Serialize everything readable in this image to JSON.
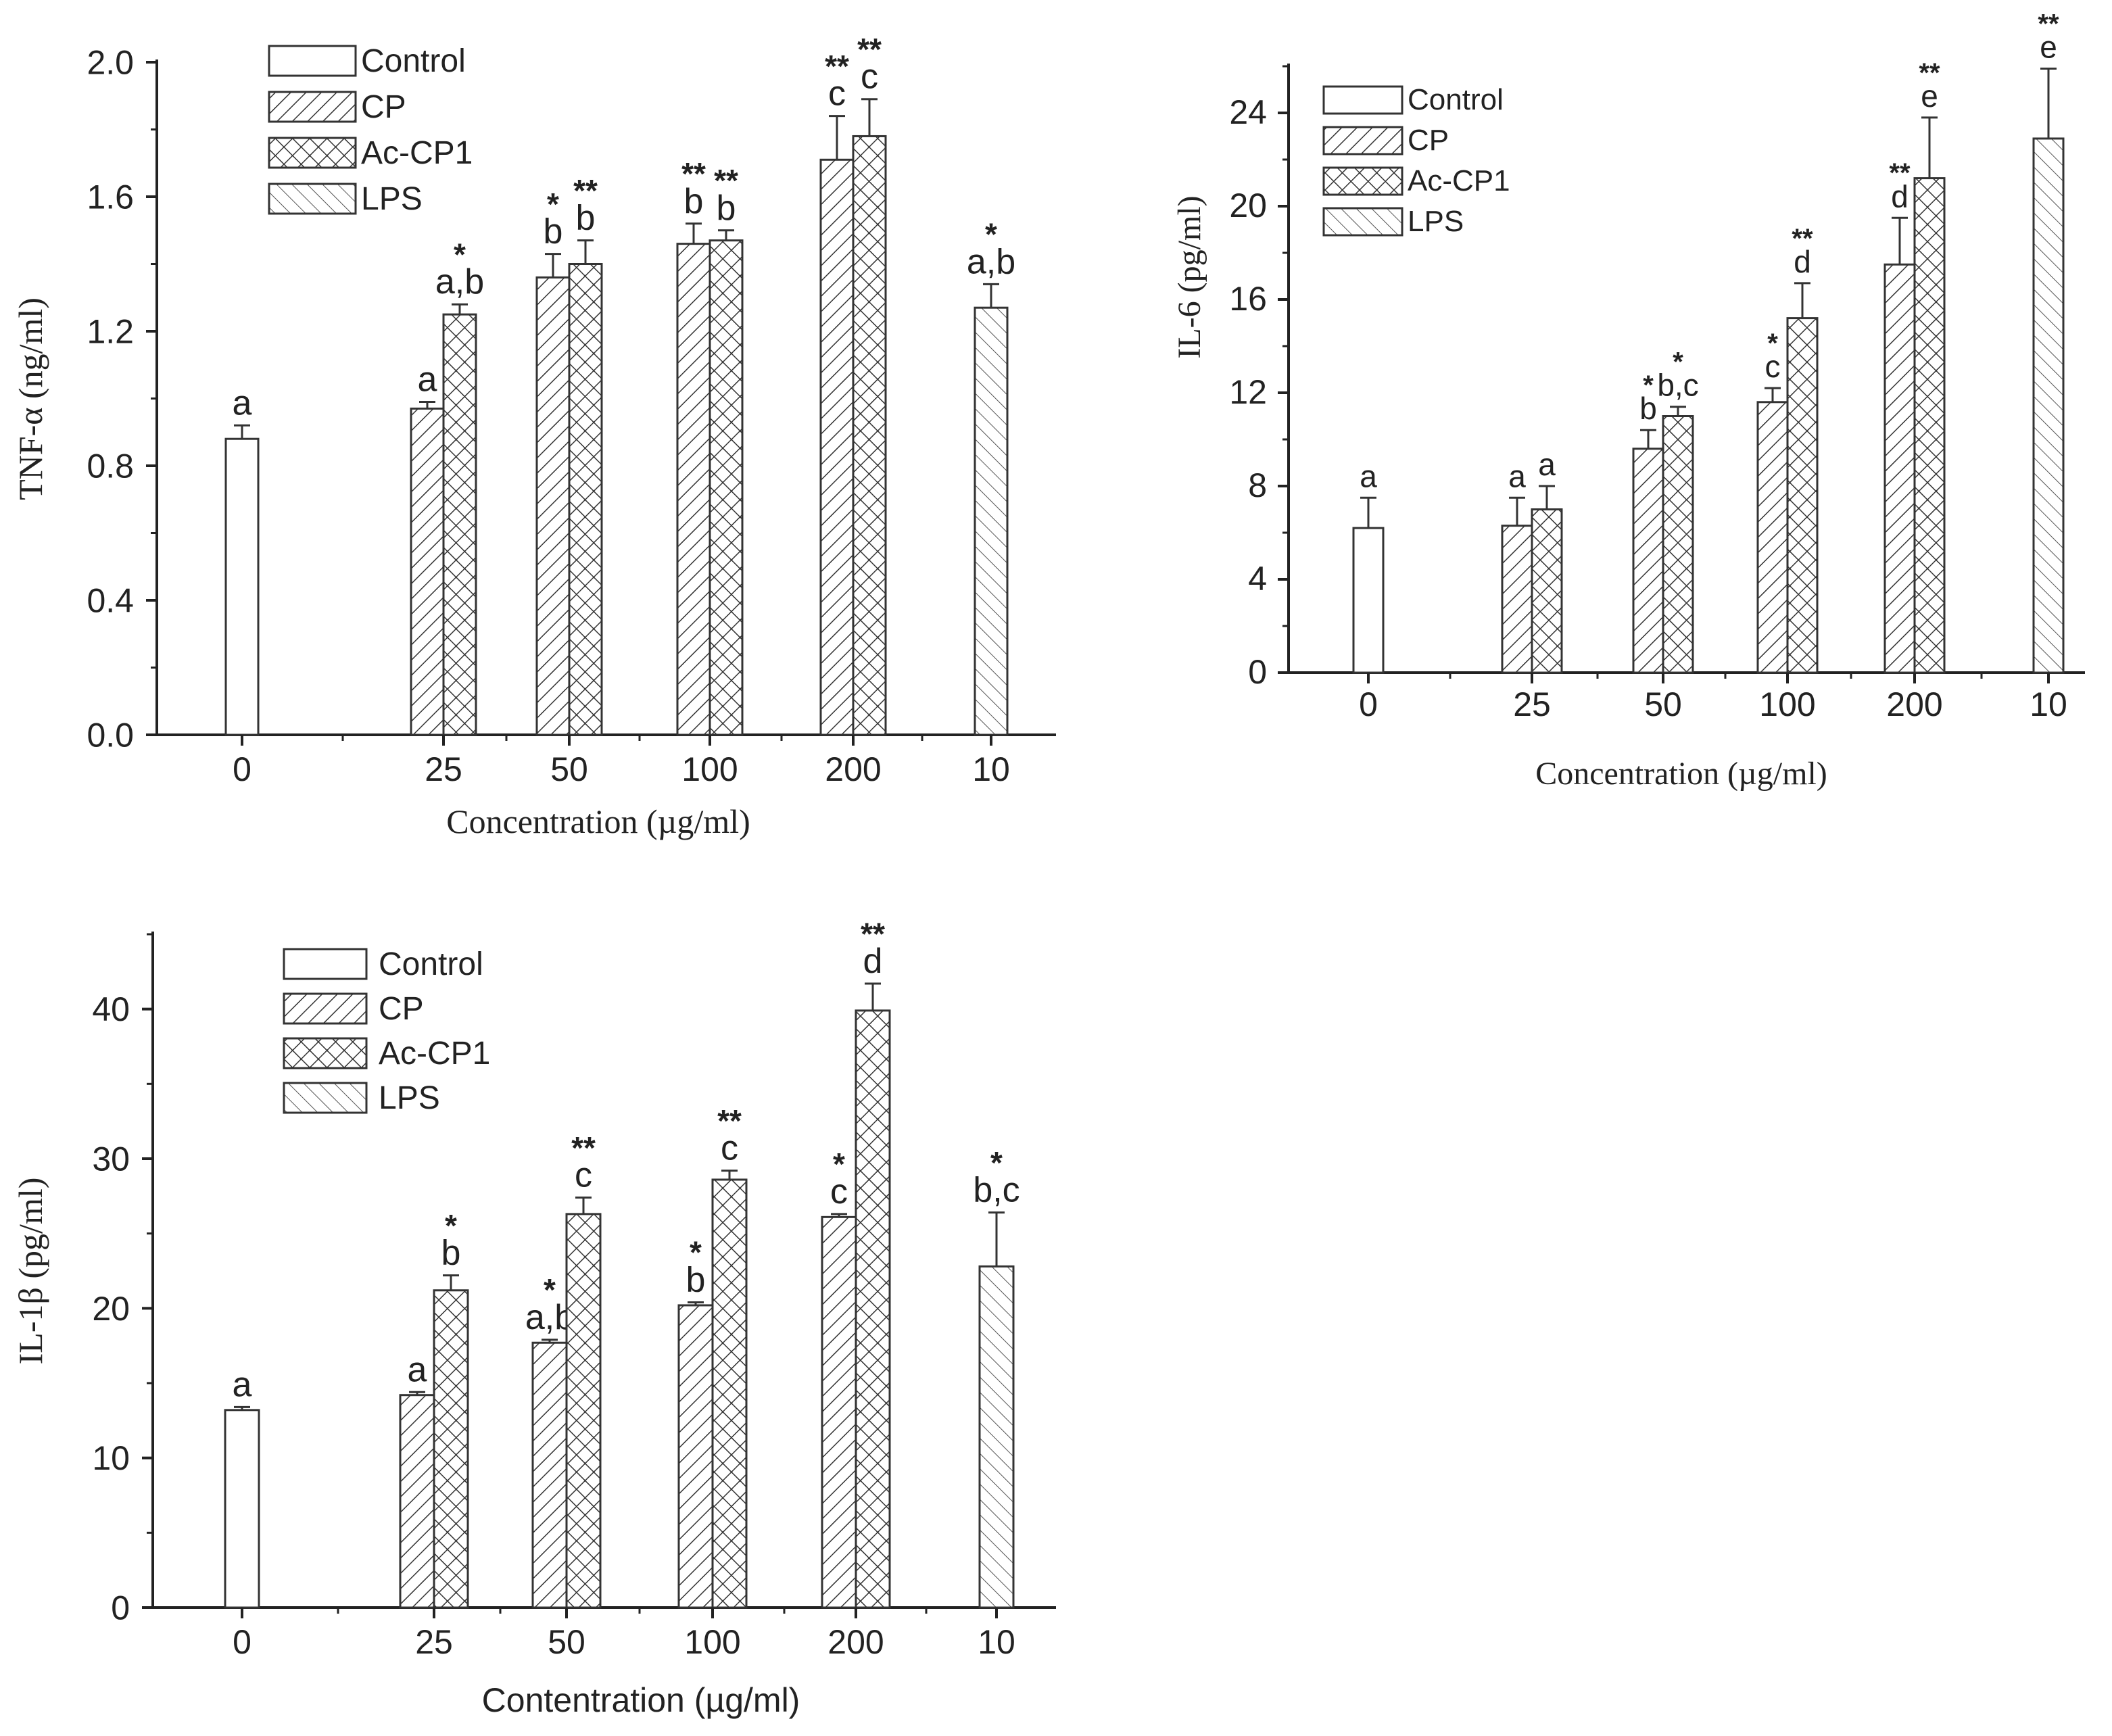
{
  "chart_data": [
    {
      "type": "bar",
      "panel": "top-left",
      "ylabel": "TNF-α  (ng/ml)",
      "xlabel": "Concentration (µg/ml)",
      "ylim": [
        0,
        2.0
      ],
      "yticks": [
        "0.0",
        "0.4",
        "0.8",
        "1.2",
        "1.6",
        "2.0"
      ],
      "ytick_values": [
        0,
        0.4,
        0.8,
        1.2,
        1.6,
        2.0
      ],
      "categories": [
        "0",
        "25",
        "50",
        "100",
        "200",
        "10"
      ],
      "legend": [
        "Control",
        "CP",
        "Ac-CP1"
      ],
      "legend_last": "LPS",
      "legend_position": "top-left",
      "bars": [
        {
          "series": "Control",
          "category": "0",
          "value": 0.88,
          "error": 0.04,
          "letters": "a",
          "stars": ""
        },
        {
          "series": "CP",
          "category": "25",
          "value": 0.97,
          "error": 0.02,
          "letters": "a",
          "stars": ""
        },
        {
          "series": "Ac-CP1",
          "category": "25",
          "value": 1.25,
          "error": 0.03,
          "letters": "a,b",
          "stars": "*"
        },
        {
          "series": "CP",
          "category": "50",
          "value": 1.36,
          "error": 0.07,
          "letters": "b",
          "stars": "*"
        },
        {
          "series": "Ac-CP1",
          "category": "50",
          "value": 1.4,
          "error": 0.07,
          "letters": "b",
          "stars": "**"
        },
        {
          "series": "CP",
          "category": "100",
          "value": 1.46,
          "error": 0.06,
          "letters": "b",
          "stars": "**"
        },
        {
          "series": "Ac-CP1",
          "category": "100",
          "value": 1.47,
          "error": 0.03,
          "letters": "b",
          "stars": "**"
        },
        {
          "series": "CP",
          "category": "200",
          "value": 1.71,
          "error": 0.13,
          "letters": "c",
          "stars": "**"
        },
        {
          "series": "Ac-CP1",
          "category": "200",
          "value": 1.78,
          "error": 0.11,
          "letters": "c",
          "stars": "**"
        },
        {
          "series": "LPS",
          "category": "10",
          "value": 1.27,
          "error": 0.07,
          "letters": "a,b",
          "stars": "*"
        }
      ]
    },
    {
      "type": "bar",
      "panel": "top-right",
      "ylabel": "IL-6 (pg/ml)",
      "xlabel": "Concentration (µg/ml)",
      "ylim": [
        0,
        26
      ],
      "yticks": [
        "0",
        "4",
        "8",
        "12",
        "16",
        "20",
        "24"
      ],
      "ytick_values": [
        0,
        4,
        8,
        12,
        16,
        20,
        24
      ],
      "categories": [
        "0",
        "25",
        "50",
        "100",
        "200",
        "10"
      ],
      "legend": [
        "Control",
        "CP",
        "Ac-CP1"
      ],
      "legend_last": "LPS",
      "legend_position": "top-left",
      "bars": [
        {
          "series": "Control",
          "category": "0",
          "value": 6.2,
          "error": 1.3,
          "letters": "a",
          "stars": ""
        },
        {
          "series": "CP",
          "category": "25",
          "value": 6.3,
          "error": 1.2,
          "letters": "a",
          "stars": ""
        },
        {
          "series": "Ac-CP1",
          "category": "25",
          "value": 7.0,
          "error": 1.0,
          "letters": "a",
          "stars": ""
        },
        {
          "series": "CP",
          "category": "50",
          "value": 9.6,
          "error": 0.8,
          "letters": "b",
          "stars": "*"
        },
        {
          "series": "Ac-CP1",
          "category": "50",
          "value": 11.0,
          "error": 0.4,
          "letters": "b,c",
          "stars": "*"
        },
        {
          "series": "CP",
          "category": "100",
          "value": 11.6,
          "error": 0.6,
          "letters": "c",
          "stars": "*"
        },
        {
          "series": "Ac-CP1",
          "category": "100",
          "value": 15.2,
          "error": 1.5,
          "letters": "d",
          "stars": "**"
        },
        {
          "series": "CP",
          "category": "200",
          "value": 17.5,
          "error": 2.0,
          "letters": "d",
          "stars": "**"
        },
        {
          "series": "Ac-CP1",
          "category": "200",
          "value": 21.2,
          "error": 2.6,
          "letters": "e",
          "stars": "**"
        },
        {
          "series": "LPS",
          "category": "10",
          "value": 22.9,
          "error": 3.0,
          "letters": "e",
          "stars": "**"
        }
      ]
    },
    {
      "type": "bar",
      "panel": "bottom-left",
      "ylabel": "IL-1β (pg/ml)",
      "xlabel": "Contentration (µg/ml)",
      "ylim": [
        0,
        45
      ],
      "yticks": [
        "0",
        "10",
        "20",
        "30",
        "40"
      ],
      "ytick_values": [
        0,
        10,
        20,
        30,
        40
      ],
      "categories": [
        "0",
        "25",
        "50",
        "100",
        "200",
        "10"
      ],
      "legend": [
        "Control",
        "CP",
        "Ac-CP1"
      ],
      "legend_last": "LPS",
      "legend_position": "top-left",
      "bars": [
        {
          "series": "Control",
          "category": "0",
          "value": 13.2,
          "error": 0.2,
          "letters": "a",
          "stars": ""
        },
        {
          "series": "CP",
          "category": "25",
          "value": 14.2,
          "error": 0.2,
          "letters": "a",
          "stars": ""
        },
        {
          "series": "Ac-CP1",
          "category": "25",
          "value": 21.2,
          "error": 1.0,
          "letters": "b",
          "stars": "*"
        },
        {
          "series": "CP",
          "category": "50",
          "value": 17.7,
          "error": 0.2,
          "letters": "a,b",
          "stars": "*"
        },
        {
          "series": "Ac-CP1",
          "category": "50",
          "value": 26.3,
          "error": 1.1,
          "letters": "c",
          "stars": "**"
        },
        {
          "series": "CP",
          "category": "100",
          "value": 20.2,
          "error": 0.2,
          "letters": "b",
          "stars": "*"
        },
        {
          "series": "Ac-CP1",
          "category": "100",
          "value": 28.6,
          "error": 0.6,
          "letters": "c",
          "stars": "**"
        },
        {
          "series": "CP",
          "category": "200",
          "value": 26.1,
          "error": 0.2,
          "letters": "c",
          "stars": "*"
        },
        {
          "series": "Ac-CP1",
          "category": "200",
          "value": 39.9,
          "error": 1.8,
          "letters": "d",
          "stars": "**"
        },
        {
          "series": "LPS",
          "category": "10",
          "value": 22.8,
          "error": 3.6,
          "letters": "b,c",
          "stars": "*"
        }
      ]
    }
  ]
}
